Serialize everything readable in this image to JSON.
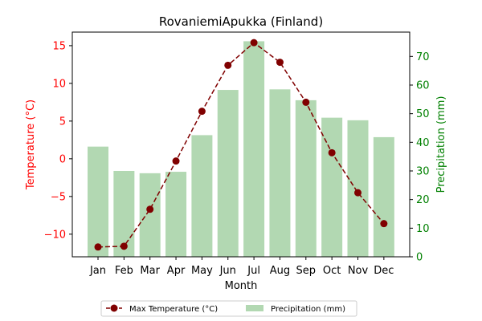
{
  "chart_data": {
    "type": "bar-line-combo",
    "title": "RovaniemiApukka (Finland)",
    "xlabel": "Month",
    "categories": [
      "Jan",
      "Feb",
      "Mar",
      "Apr",
      "May",
      "Jun",
      "Jul",
      "Aug",
      "Sep",
      "Oct",
      "Nov",
      "Dec"
    ],
    "y_left": {
      "label": "Temperature (°C)",
      "range": [
        -13.0,
        16.8
      ],
      "ticks": [
        -10,
        -5,
        0,
        5,
        10,
        15
      ],
      "tick_labels": [
        "−10",
        "−5",
        "0",
        "5",
        "10",
        "15"
      ],
      "color": "#ff0000"
    },
    "y_right": {
      "label": "Precipitation (mm)",
      "range": [
        0,
        78.5
      ],
      "ticks": [
        0,
        10,
        20,
        30,
        40,
        50,
        60,
        70
      ],
      "tick_labels": [
        "0",
        "10",
        "20",
        "30",
        "40",
        "50",
        "60",
        "70"
      ],
      "color": "#008000"
    },
    "series": [
      {
        "name": "Max Temperature (°C)",
        "kind": "line",
        "axis": "left",
        "color": "#800000",
        "style": "dashed",
        "marker": "circle",
        "values": [
          -11.7,
          -11.6,
          -6.7,
          -0.3,
          6.3,
          12.4,
          15.4,
          12.8,
          7.5,
          0.8,
          -4.5,
          -8.6
        ]
      },
      {
        "name": "Precipitation (mm)",
        "kind": "bar",
        "axis": "right",
        "color": "#b2d8b2",
        "values": [
          38.5,
          30.0,
          29.2,
          29.7,
          42.5,
          58.3,
          75.3,
          58.5,
          54.7,
          48.6,
          47.7,
          41.8
        ]
      }
    ],
    "legend": {
      "placement": "bottom-center",
      "columns": 2
    },
    "grid": false
  }
}
